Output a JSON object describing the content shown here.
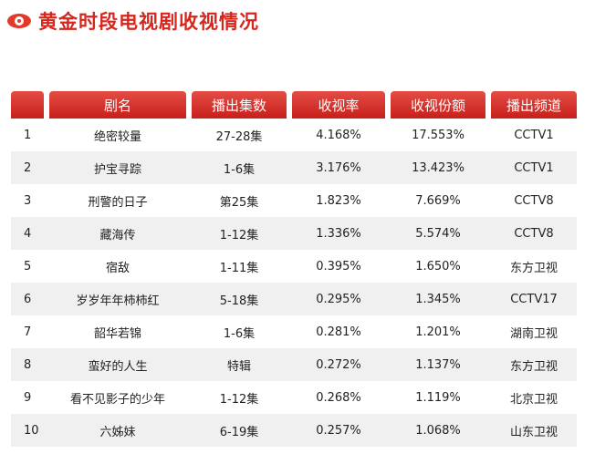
{
  "page": {
    "title": "黄金时段电视剧收视情况"
  },
  "table": {
    "headers": {
      "rank": "",
      "name": "剧名",
      "episodes": "播出集数",
      "rating": "收视率",
      "share": "收视份额",
      "channel": "播出频道"
    },
    "rows": [
      {
        "rank": "1",
        "name": "绝密较量",
        "episodes": "27-28集",
        "rating": "4.168%",
        "share": "17.553%",
        "channel": "CCTV1"
      },
      {
        "rank": "2",
        "name": "护宝寻踪",
        "episodes": "1-6集",
        "rating": "3.176%",
        "share": "13.423%",
        "channel": "CCTV1"
      },
      {
        "rank": "3",
        "name": "刑警的日子",
        "episodes": "第25集",
        "rating": "1.823%",
        "share": "7.669%",
        "channel": "CCTV8"
      },
      {
        "rank": "4",
        "name": "藏海传",
        "episodes": "1-12集",
        "rating": "1.336%",
        "share": "5.574%",
        "channel": "CCTV8"
      },
      {
        "rank": "5",
        "name": "宿敌",
        "episodes": "1-11集",
        "rating": "0.395%",
        "share": "1.650%",
        "channel": "东方卫视"
      },
      {
        "rank": "6",
        "name": "岁岁年年柿柿红",
        "episodes": "5-18集",
        "rating": "0.295%",
        "share": "1.345%",
        "channel": "CCTV17"
      },
      {
        "rank": "7",
        "name": "韶华若锦",
        "episodes": "1-6集",
        "rating": "0.281%",
        "share": "1.201%",
        "channel": "湖南卫视"
      },
      {
        "rank": "8",
        "name": "蛮好的人生",
        "episodes": "特辑",
        "rating": "0.272%",
        "share": "1.137%",
        "channel": "东方卫视"
      },
      {
        "rank": "9",
        "name": "看不见影子的少年",
        "episodes": "1-12集",
        "rating": "0.268%",
        "share": "1.119%",
        "channel": "北京卫视"
      },
      {
        "rank": "10",
        "name": "六姊妹",
        "episodes": "6-19集",
        "rating": "0.257%",
        "share": "1.068%",
        "channel": "山东卫视"
      }
    ]
  },
  "colors": {
    "accent": "#d8261d",
    "header_bg": "#c81f1a",
    "alt_row": "#f0f0f0"
  }
}
